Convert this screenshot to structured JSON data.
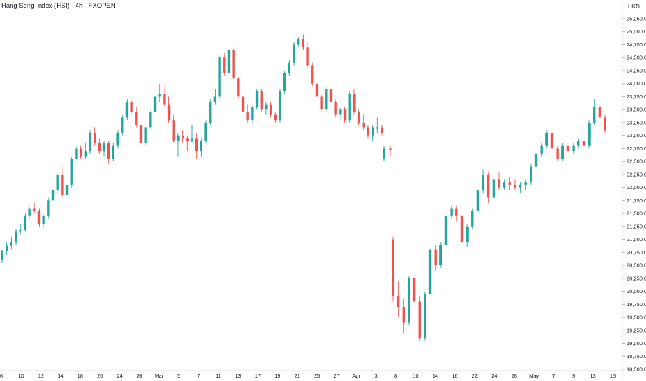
{
  "chart_data": {
    "type": "candlestick",
    "title": "Hang Seng Index (HSI) · 4h · FXOPEN",
    "currency": "HKD",
    "ylim": [
      18500,
      25500
    ],
    "y_ticks": [
      "18,500.0",
      "18,750.0",
      "19,000.0",
      "19,250.0",
      "19,500.0",
      "19,750.0",
      "20,000.0",
      "20,250.0",
      "20,500.0",
      "20,750.0",
      "21,000.0",
      "21,250.0",
      "21,500.0",
      "21,750.0",
      "22,000.0",
      "22,250.0",
      "22,500.0",
      "22,750.0",
      "23,000.0",
      "23,250.0",
      "23,500.0",
      "23,750.0",
      "24,000.0",
      "24,250.0",
      "24,500.0",
      "24,750.0",
      "25,000.0",
      "25,250.0"
    ],
    "x_ticks": [
      "6",
      "10",
      "12",
      "14",
      "18",
      "20",
      "24",
      "26",
      "Mar",
      "5",
      "7",
      "11",
      "13",
      "17",
      "19",
      "21",
      "25",
      "27",
      "Apr",
      "3",
      "8",
      "10",
      "14",
      "16",
      "22",
      "24",
      "28",
      "May",
      "7",
      "9",
      "13",
      "15"
    ],
    "up_color": "#26a69a",
    "down_color": "#ef5350",
    "ohlc_keys": [
      "o",
      "h",
      "l",
      "c"
    ],
    "candles": [
      [
        20600,
        20800,
        20550,
        20780
      ],
      [
        20780,
        20950,
        20700,
        20880
      ],
      [
        20880,
        21050,
        20800,
        20950
      ],
      [
        20950,
        21200,
        20900,
        21150
      ],
      [
        21150,
        21300,
        21100,
        21180
      ],
      [
        21180,
        21500,
        21150,
        21450
      ],
      [
        21450,
        21650,
        21400,
        21600
      ],
      [
        21600,
        21700,
        21500,
        21550
      ],
      [
        21550,
        21600,
        21250,
        21300
      ],
      [
        21300,
        21500,
        21200,
        21450
      ],
      [
        21450,
        21800,
        21400,
        21750
      ],
      [
        21750,
        22000,
        21700,
        21950
      ],
      [
        21950,
        22300,
        21900,
        22250
      ],
      [
        22250,
        22400,
        21800,
        21850
      ],
      [
        21850,
        22100,
        21800,
        22050
      ],
      [
        22050,
        22600,
        22000,
        22550
      ],
      [
        22550,
        22800,
        22500,
        22750
      ],
      [
        22750,
        22800,
        22550,
        22600
      ],
      [
        22600,
        22850,
        22550,
        22700
      ],
      [
        22700,
        23100,
        22650,
        23050
      ],
      [
        23050,
        23150,
        22800,
        22850
      ],
      [
        22850,
        22950,
        22650,
        22700
      ],
      [
        22700,
        22900,
        22600,
        22850
      ],
      [
        22850,
        22900,
        22450,
        22550
      ],
      [
        22550,
        22850,
        22500,
        22800
      ],
      [
        22800,
        23100,
        22750,
        23050
      ],
      [
        23050,
        23400,
        23000,
        23350
      ],
      [
        23350,
        23700,
        23300,
        23650
      ],
      [
        23650,
        23700,
        23400,
        23450
      ],
      [
        23450,
        23550,
        23150,
        23200
      ],
      [
        23200,
        23350,
        22800,
        22850
      ],
      [
        22850,
        23200,
        22800,
        23150
      ],
      [
        23150,
        23500,
        23100,
        23450
      ],
      [
        23450,
        23800,
        23400,
        23750
      ],
      [
        23750,
        24000,
        23650,
        23800
      ],
      [
        23800,
        23950,
        23550,
        23600
      ],
      [
        23600,
        23750,
        23250,
        23300
      ],
      [
        23300,
        23400,
        22850,
        22900
      ],
      [
        22900,
        23050,
        22600,
        23000
      ],
      [
        23000,
        23100,
        22850,
        22950
      ],
      [
        22950,
        23000,
        22700,
        22900
      ],
      [
        22900,
        23200,
        22850,
        22950
      ],
      [
        22950,
        23050,
        22550,
        22700
      ],
      [
        22700,
        22950,
        22600,
        22900
      ],
      [
        22900,
        23300,
        22850,
        23250
      ],
      [
        23250,
        23700,
        23200,
        23650
      ],
      [
        23650,
        23900,
        23600,
        23750
      ],
      [
        23750,
        24550,
        23700,
        24500
      ],
      [
        24500,
        24600,
        24150,
        24200
      ],
      [
        24200,
        24700,
        24150,
        24650
      ],
      [
        24650,
        24700,
        24050,
        24100
      ],
      [
        24100,
        24150,
        23700,
        23750
      ],
      [
        23750,
        23900,
        23400,
        23450
      ],
      [
        23450,
        23600,
        23250,
        23300
      ],
      [
        23300,
        23600,
        23200,
        23550
      ],
      [
        23550,
        23900,
        23500,
        23850
      ],
      [
        23850,
        23900,
        23450,
        23500
      ],
      [
        23500,
        23650,
        23400,
        23600
      ],
      [
        23600,
        23650,
        23350,
        23400
      ],
      [
        23400,
        23450,
        23250,
        23300
      ],
      [
        23300,
        23900,
        23250,
        23850
      ],
      [
        23850,
        24250,
        23800,
        24200
      ],
      [
        24200,
        24450,
        24150,
        24400
      ],
      [
        24400,
        24800,
        24350,
        24750
      ],
      [
        24750,
        24900,
        24700,
        24850
      ],
      [
        24850,
        24950,
        24650,
        24700
      ],
      [
        24700,
        24800,
        24300,
        24350
      ],
      [
        24350,
        24400,
        23950,
        24000
      ],
      [
        24000,
        24050,
        23700,
        23750
      ],
      [
        23750,
        23800,
        23450,
        23500
      ],
      [
        23500,
        23950,
        23450,
        23900
      ],
      [
        23900,
        23950,
        23600,
        23650
      ],
      [
        23650,
        23700,
        23350,
        23400
      ],
      [
        23400,
        23550,
        23300,
        23500
      ],
      [
        23500,
        23550,
        23250,
        23300
      ],
      [
        23300,
        23850,
        23250,
        23800
      ],
      [
        23800,
        23900,
        23400,
        23450
      ],
      [
        23450,
        23500,
        23200,
        23250
      ],
      [
        23250,
        23400,
        23100,
        23150
      ],
      [
        23150,
        23200,
        22950,
        23000
      ],
      [
        23000,
        23200,
        22900,
        23150
      ],
      [
        23150,
        23350,
        23050,
        23150
      ],
      [
        23150,
        23200,
        23000,
        23050
      ],
      [
        22550,
        22800,
        22500,
        22750
      ],
      [
        22750,
        22800,
        22600,
        22720
      ],
      [
        21000,
        21050,
        19800,
        19900
      ],
      [
        19900,
        20200,
        19500,
        19700
      ],
      [
        19700,
        19850,
        19200,
        19400
      ],
      [
        19400,
        20300,
        19350,
        20250
      ],
      [
        20250,
        20400,
        19700,
        19800
      ],
      [
        19800,
        19900,
        19050,
        19100
      ],
      [
        19100,
        20000,
        19050,
        19950
      ],
      [
        19950,
        20850,
        19900,
        20800
      ],
      [
        20800,
        20900,
        20400,
        20500
      ],
      [
        20500,
        20950,
        20450,
        20900
      ],
      [
        20900,
        21500,
        20850,
        21450
      ],
      [
        21450,
        21650,
        21400,
        21600
      ],
      [
        21600,
        21650,
        21350,
        21450
      ],
      [
        21450,
        21500,
        20900,
        20950
      ],
      [
        20950,
        21300,
        20850,
        21250
      ],
      [
        21250,
        21600,
        21200,
        21550
      ],
      [
        21550,
        22000,
        21500,
        21950
      ],
      [
        21950,
        22350,
        21900,
        22250
      ],
      [
        22250,
        22300,
        21700,
        21800
      ],
      [
        21800,
        22200,
        21750,
        22150
      ],
      [
        22150,
        22300,
        21950,
        22000
      ],
      [
        22000,
        22150,
        21950,
        22100
      ],
      [
        22100,
        22200,
        21950,
        22050
      ],
      [
        22050,
        22150,
        21950,
        22000
      ],
      [
        22000,
        22100,
        21900,
        22050
      ],
      [
        22050,
        22150,
        21950,
        22100
      ],
      [
        22100,
        22450,
        22050,
        22400
      ],
      [
        22400,
        22700,
        22350,
        22650
      ],
      [
        22650,
        22850,
        22600,
        22800
      ],
      [
        22800,
        23100,
        22750,
        23050
      ],
      [
        23050,
        23100,
        22700,
        22750
      ],
      [
        22750,
        22800,
        22500,
        22550
      ],
      [
        22550,
        22850,
        22500,
        22800
      ],
      [
        22800,
        22900,
        22650,
        22700
      ],
      [
        22700,
        22850,
        22650,
        22800
      ],
      [
        22800,
        22950,
        22750,
        22900
      ],
      [
        22900,
        22950,
        22700,
        22800
      ],
      [
        22800,
        23300,
        22750,
        23250
      ],
      [
        23250,
        23700,
        23200,
        23550
      ],
      [
        23550,
        23600,
        23300,
        23350
      ],
      [
        23350,
        23400,
        23050,
        23100
      ]
    ]
  }
}
